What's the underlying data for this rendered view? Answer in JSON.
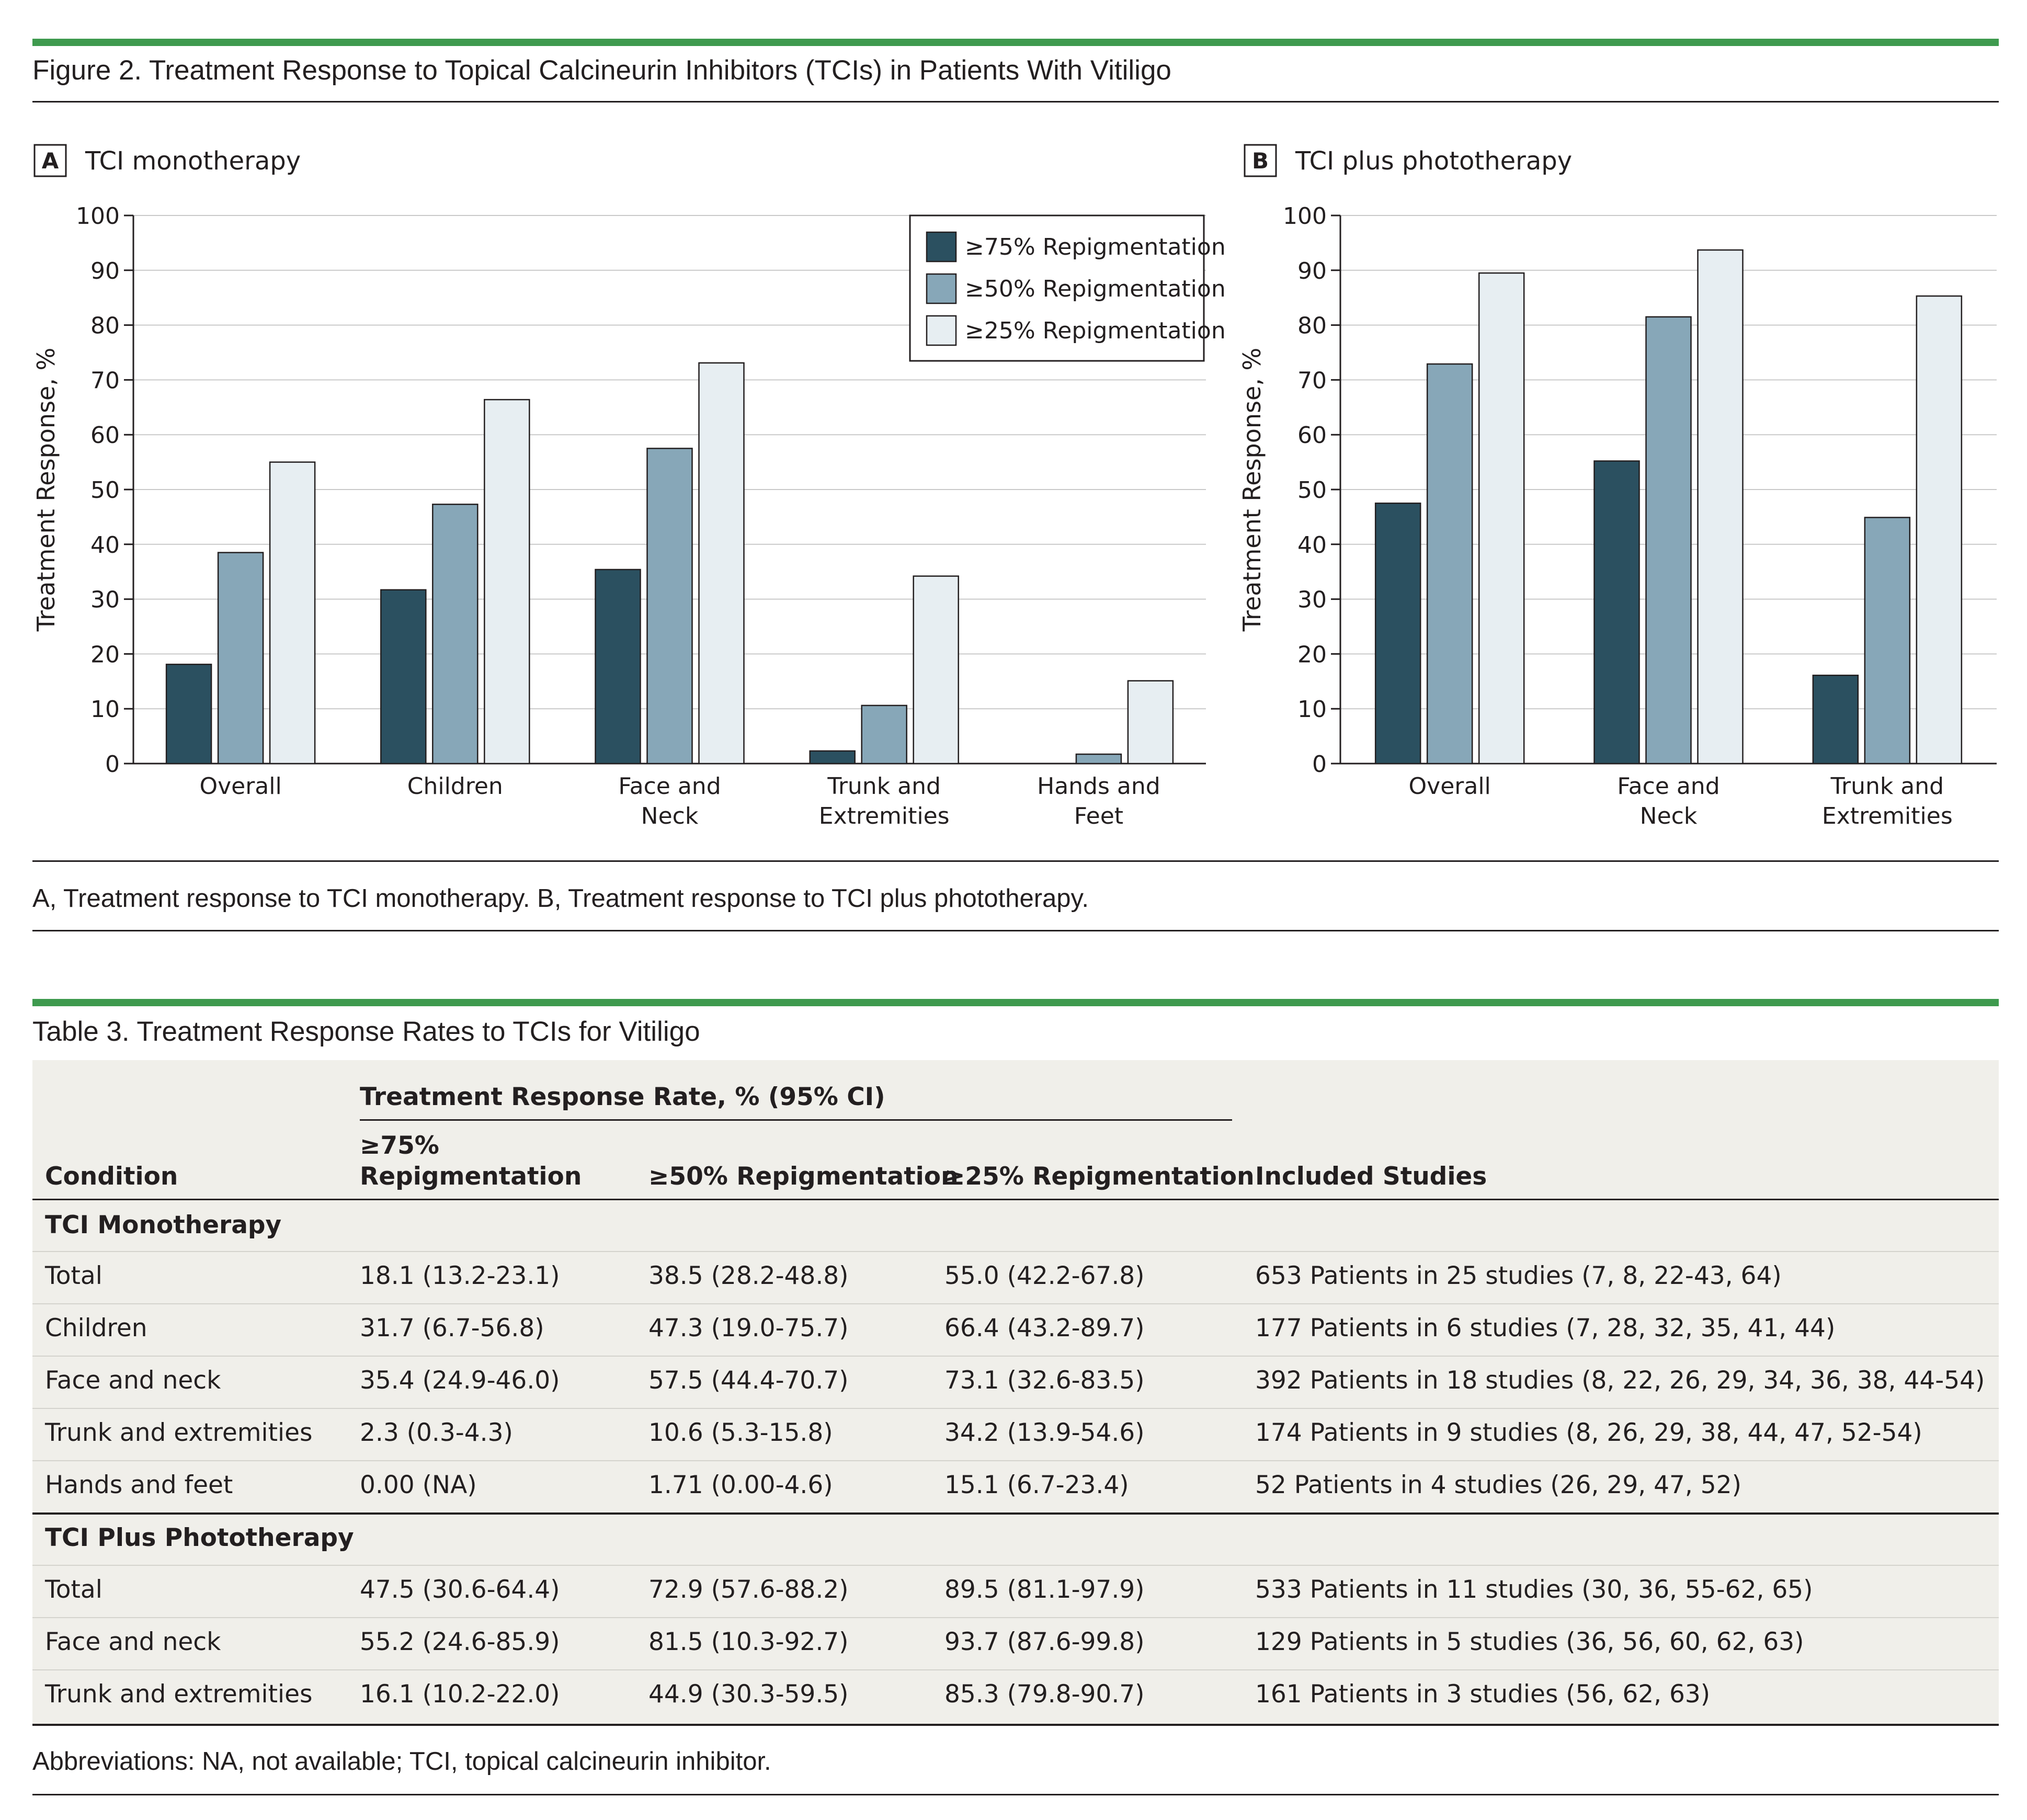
{
  "figure": {
    "title": "Figure 2. Treatment Response to Topical Calcineurin Inhibitors (TCIs) in Patients With Vitiligo",
    "caption": "A, Treatment response to TCI monotherapy. B, Treatment response to TCI plus phototherapy."
  },
  "colors": {
    "green_rule": "#3e9a4e",
    "series_dark": "#2b5060",
    "series_mid": "#87a7b8",
    "series_light": "#e7eef2",
    "table_bg": "#f0efea"
  },
  "chart_data": [
    {
      "type": "bar",
      "panel_letter": "A",
      "panel_title": "TCI monotherapy",
      "categories": [
        [
          "Overall"
        ],
        [
          "Children"
        ],
        [
          "Face and",
          "Neck"
        ],
        [
          "Trunk and",
          "Extremities"
        ],
        [
          "Hands and",
          "Feet"
        ]
      ],
      "series": [
        {
          "name": "≥75% Repigmentation",
          "values": [
            18.1,
            31.7,
            35.4,
            2.3,
            0
          ]
        },
        {
          "name": "≥50% Repigmentation",
          "values": [
            38.5,
            47.3,
            57.5,
            10.6,
            1.71
          ]
        },
        {
          "name": "≥25% Repigmentation",
          "values": [
            55.0,
            66.4,
            73.1,
            34.2,
            15.1
          ]
        }
      ],
      "ylabel": "Treatment Response, %",
      "ylim": [
        0,
        100
      ],
      "yticks": [
        "0",
        "10",
        "20",
        "30",
        "40",
        "50",
        "60",
        "70",
        "80",
        "90",
        "100"
      ],
      "grid": true,
      "legend": "top-right"
    },
    {
      "type": "bar",
      "panel_letter": "B",
      "panel_title": "TCI plus phototherapy",
      "categories": [
        [
          "Overall"
        ],
        [
          "Face and",
          "Neck"
        ],
        [
          "Trunk and",
          "Extremities"
        ]
      ],
      "series": [
        {
          "name": "≥75% Repigmentation",
          "values": [
            47.5,
            55.2,
            16.1
          ]
        },
        {
          "name": "≥50% Repigmentation",
          "values": [
            72.9,
            81.5,
            44.9
          ]
        },
        {
          "name": "≥25% Repigmentation",
          "values": [
            89.5,
            93.7,
            85.3
          ]
        }
      ],
      "ylabel": "Treatment Response, %",
      "ylim": [
        0,
        100
      ],
      "yticks": [
        "0",
        "10",
        "20",
        "30",
        "40",
        "50",
        "60",
        "70",
        "80",
        "90",
        "100"
      ],
      "grid": true
    }
  ],
  "table": {
    "title": "Table 3. Treatment Response Rates to TCIs for Vitiligo",
    "group_header": "Treatment Response Rate, % (95% CI)",
    "headers": {
      "condition": "Condition",
      "r75_line1": "≥75%",
      "r75_line2": "Repigmentation",
      "r50": "≥50% Repigmentation",
      "r25": "≥25% Repigmentation",
      "studies": "Included Studies"
    },
    "sections": [
      {
        "name": "TCI Monotherapy",
        "rows": [
          [
            "Total",
            "18.1 (13.2-23.1)",
            "38.5 (28.2-48.8)",
            "55.0 (42.2-67.8)",
            "653 Patients in 25 studies (7, 8, 22-43, 64)"
          ],
          [
            "Children",
            "31.7 (6.7-56.8)",
            "47.3 (19.0-75.7)",
            "66.4 (43.2-89.7)",
            "177 Patients in 6 studies (7, 28, 32, 35, 41, 44)"
          ],
          [
            "Face and neck",
            "35.4 (24.9-46.0)",
            "57.5 (44.4-70.7)",
            "73.1 (32.6-83.5)",
            "392 Patients in 18 studies (8, 22, 26, 29, 34, 36, 38, 44-54)"
          ],
          [
            "Trunk and extremities",
            "2.3 (0.3-4.3)",
            "10.6 (5.3-15.8)",
            "34.2 (13.9-54.6)",
            "174 Patients in 9 studies (8, 26, 29, 38, 44, 47, 52-54)"
          ],
          [
            "Hands and feet",
            "0.00 (NA)",
            "1.71 (0.00-4.6)",
            "15.1 (6.7-23.4)",
            "52 Patients in 4 studies (26, 29, 47, 52)"
          ]
        ]
      },
      {
        "name": "TCI Plus Phototherapy",
        "rows": [
          [
            "Total",
            "47.5 (30.6-64.4)",
            "72.9 (57.6-88.2)",
            "89.5 (81.1-97.9)",
            "533 Patients in 11 studies (30, 36, 55-62, 65)"
          ],
          [
            "Face and neck",
            "55.2 (24.6-85.9)",
            "81.5 (10.3-92.7)",
            "93.7 (87.6-99.8)",
            "129 Patients in 5 studies (36, 56, 60, 62, 63)"
          ],
          [
            "Trunk and extremities",
            "16.1 (10.2-22.0)",
            "44.9 (30.3-59.5)",
            "85.3 (79.8-90.7)",
            "161 Patients in 3 studies (56, 62, 63)"
          ]
        ]
      }
    ],
    "footnote": "Abbreviations: NA, not available; TCI, topical calcineurin inhibitor."
  }
}
